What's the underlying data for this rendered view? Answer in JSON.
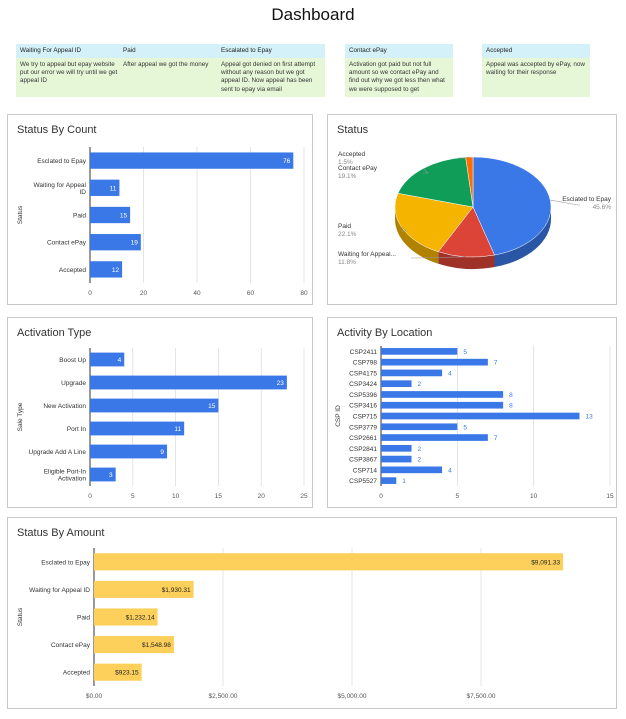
{
  "page": {
    "title": "Dashboard"
  },
  "legend": [
    {
      "header": "Waiting For Appeal ID",
      "body": "We try to appeal but epay website put our error we will try until we get appeal ID"
    },
    {
      "header": "Paid",
      "body": "After appeal we got the money"
    },
    {
      "header": "Escalated to Epay",
      "body": "Appeal got denied on first attempt without any reason but we got appeal ID. Now appeal has been sent to epay via email"
    },
    {
      "header": "Contact ePay",
      "body": "Activation  got paid but not full amount so we contact ePay and find out why we got less then what we were supposed to get"
    },
    {
      "header": "Accepted",
      "body": "Appeal was accepted by ePay, now waiting for their response"
    }
  ],
  "colors": {
    "blue": "#3b78e7",
    "yellow": "#fcd05b",
    "grid": "#d9d9d9",
    "axis": "#333333"
  },
  "chart_data": [
    {
      "type": "bar",
      "orientation": "horizontal",
      "title": "Status By Count",
      "ylabel": "Status",
      "categories": [
        "Esclated to Epay",
        "Waiting for Appeal ID",
        "Paid",
        "Contact ePay",
        "Accepted"
      ],
      "values": [
        76,
        11,
        15,
        19,
        12
      ],
      "value_labels": [
        "76",
        "11",
        "15",
        "19",
        "12"
      ],
      "xlim": [
        0,
        80
      ],
      "xticks": [
        "0",
        "20",
        "40",
        "60",
        "80"
      ],
      "grid": true
    },
    {
      "type": "pie",
      "title": "Status",
      "slices": [
        {
          "label": "Esclated to Epay",
          "value": 45.6,
          "pct": "45.6%",
          "color": "#3b78e7"
        },
        {
          "label": "Waiting for Appeal...",
          "value": 11.8,
          "pct": "11.8%",
          "color": "#db4437"
        },
        {
          "label": "Paid",
          "value": 22.1,
          "pct": "22.1%",
          "color": "#f4b400"
        },
        {
          "label": "Contact ePay",
          "value": 19.1,
          "pct": "19.1%",
          "color": "#0f9d58"
        },
        {
          "label": "Accepted",
          "value": 1.5,
          "pct": "1.5%",
          "color": "#ff6d00"
        }
      ]
    },
    {
      "type": "bar",
      "orientation": "horizontal",
      "title": "Activation Type",
      "ylabel": "Sale Type",
      "categories": [
        "Boost Up",
        "Upgrade",
        "New Activation",
        "Port In",
        "Upgrade Add A Line",
        "Eligible Port-In Activation"
      ],
      "values": [
        4,
        23,
        15,
        11,
        9,
        3
      ],
      "value_labels": [
        "4",
        "23",
        "15",
        "11",
        "9",
        "3"
      ],
      "xlim": [
        0,
        25
      ],
      "xticks": [
        "0",
        "5",
        "10",
        "15",
        "20",
        "25"
      ],
      "grid": true
    },
    {
      "type": "bar",
      "orientation": "horizontal",
      "title": "Activity By Location",
      "ylabel": "CSP ID",
      "categories": [
        "CSP2411",
        "CSP798",
        "CSP4175",
        "CSP3424",
        "CSP5396",
        "CSP3416",
        "CSP715",
        "CSP3779",
        "CSP2661",
        "CSP2841",
        "CSP3867",
        "CSP714",
        "CSP5527"
      ],
      "values": [
        5,
        7,
        4,
        2,
        8,
        8,
        13,
        5,
        7,
        2,
        2,
        4,
        1
      ],
      "value_labels": [
        "5",
        "7",
        "4",
        "2",
        "8",
        "8",
        "13",
        "5",
        "7",
        "2",
        "2",
        "4",
        "1"
      ],
      "xlim": [
        0,
        15
      ],
      "xticks": [
        "0",
        "5",
        "10",
        "15"
      ],
      "grid": true
    },
    {
      "type": "bar",
      "orientation": "horizontal",
      "title": "Status By Amount",
      "ylabel": "Status",
      "categories": [
        "Esclated to Epay",
        "Waiting for Appeal ID",
        "Paid",
        "Contact ePay",
        "Accepted"
      ],
      "values": [
        9091.33,
        1930.31,
        1232.14,
        1548.98,
        923.15
      ],
      "value_labels": [
        "$9,091.33",
        "$1,930.31",
        "$1,232.14",
        "$1,548.98",
        "$923.15"
      ],
      "xlim": [
        0,
        10000
      ],
      "xticks": [
        "$0.00",
        "$2,500.00",
        "$5,000.00",
        "$7,500.00"
      ],
      "grid": true
    }
  ]
}
